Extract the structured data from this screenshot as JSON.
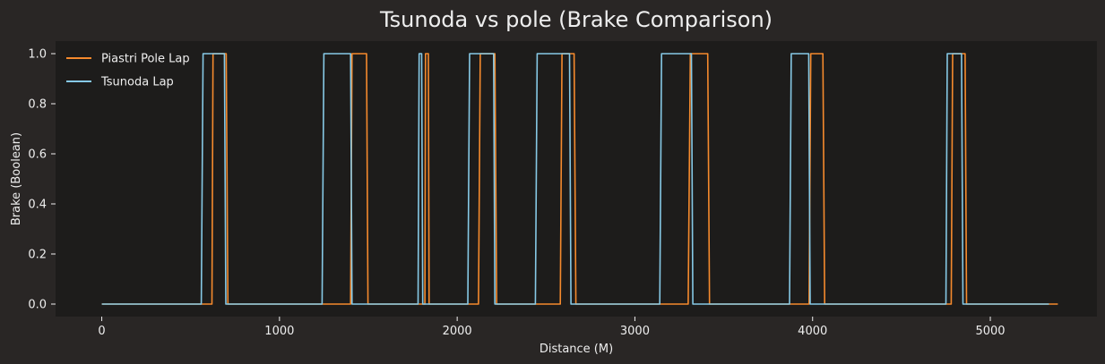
{
  "chart_data": {
    "type": "line",
    "title": "Tsunoda vs pole (Brake Comparison)",
    "xlabel": "Distance (M)",
    "ylabel": "Brake (Boolean)",
    "xlim": [
      -260,
      5600
    ],
    "ylim": [
      -0.05,
      1.05
    ],
    "xticks": [
      0,
      1000,
      2000,
      3000,
      4000,
      5000
    ],
    "yticks": [
      0.0,
      0.2,
      0.4,
      0.6,
      0.8,
      1.0
    ],
    "grid": false,
    "legend": "top-left",
    "colors": {
      "figure_bg": "#292625",
      "axes_bg": "#1d1c1b",
      "text": "#eeeeee"
    },
    "series": [
      {
        "name": "Piastri Pole Lap",
        "color": "#f58a2d",
        "x": [
          0,
          620,
          626,
          700,
          710,
          1400,
          1408,
          1490,
          1498,
          1818,
          1822,
          1838,
          1842,
          2120,
          2130,
          2212,
          2222,
          2580,
          2590,
          2658,
          2668,
          3300,
          3312,
          3410,
          3420,
          3980,
          3990,
          4058,
          4068,
          4780,
          4788,
          4858,
          4866,
          5380
        ],
        "y": [
          0,
          0,
          1,
          1,
          0,
          0,
          1,
          1,
          0,
          0,
          1,
          1,
          0,
          0,
          1,
          1,
          0,
          0,
          1,
          1,
          0,
          0,
          1,
          1,
          0,
          0,
          1,
          1,
          0,
          0,
          1,
          1,
          0,
          0
        ]
      },
      {
        "name": "Tsunoda Lap",
        "color": "#86c9e6",
        "x": [
          0,
          560,
          570,
          690,
          698,
          1240,
          1250,
          1400,
          1408,
          1780,
          1786,
          1800,
          1806,
          2060,
          2070,
          2205,
          2212,
          2440,
          2450,
          2632,
          2640,
          3140,
          3150,
          3318,
          3326,
          3870,
          3880,
          3978,
          3986,
          4750,
          4758,
          4838,
          4846,
          5330
        ],
        "y": [
          0,
          0,
          1,
          1,
          0,
          0,
          1,
          1,
          0,
          0,
          1,
          1,
          0,
          0,
          1,
          1,
          0,
          0,
          1,
          1,
          0,
          0,
          1,
          1,
          0,
          0,
          1,
          1,
          0,
          0,
          1,
          1,
          0,
          0
        ]
      }
    ]
  }
}
